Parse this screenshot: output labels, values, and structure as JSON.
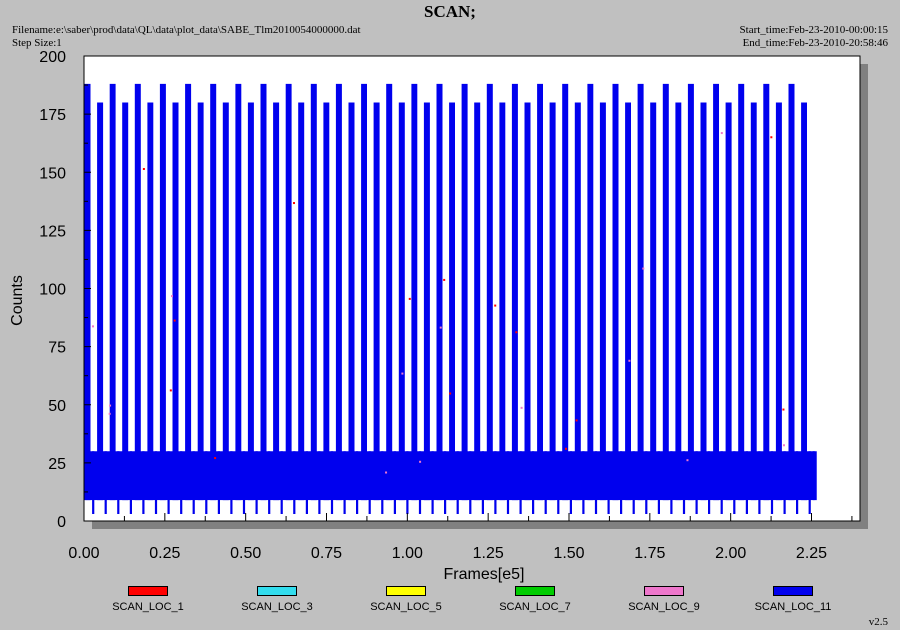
{
  "header": {
    "title": "SCAN;",
    "filename": "Filename:e:\\saber\\prod\\data\\QL\\data\\plot_data\\SABE_Tlm2010054000000.dat",
    "step_size": "Step Size:1",
    "start_time": "Start_time:Feb-23-2010-00:00:15",
    "end_time": "End_time:Feb-23-2010-20:58:46"
  },
  "version": "v2.5",
  "colors": {
    "background": "#c0c0c0",
    "plot_area": "#ffffff",
    "shadow": "#808080"
  },
  "chart_data": {
    "type": "line",
    "title": "SCAN;",
    "xlabel": "Frames[e5]",
    "ylabel": "Counts",
    "xlim": [
      0,
      2.4
    ],
    "ylim": [
      0,
      200
    ],
    "xticks": [
      "0.00",
      "0.25",
      "0.50",
      "0.75",
      "1.00",
      "1.25",
      "1.50",
      "1.75",
      "2.00",
      "2.25"
    ],
    "yticks": [
      "0",
      "25",
      "50",
      "75",
      "100",
      "125",
      "150",
      "175",
      "200"
    ],
    "grid": false,
    "legend_position": "bottom",
    "series": [
      {
        "name": "SCAN_LOC_1",
        "color": "#ff0000",
        "pattern": "sparse-dots"
      },
      {
        "name": "SCAN_LOC_3",
        "color": "#33ddee",
        "pattern": "none"
      },
      {
        "name": "SCAN_LOC_5",
        "color": "#ffff00",
        "pattern": "none"
      },
      {
        "name": "SCAN_LOC_7",
        "color": "#00cc00",
        "pattern": "none"
      },
      {
        "name": "SCAN_LOC_9",
        "color": "#ee77cc",
        "pattern": "sparse-dots"
      },
      {
        "name": "SCAN_LOC_11",
        "color": "#0000ee",
        "pattern": "scan-cycles",
        "x_range": [
          0.005,
          2.26
        ],
        "peak_high": 188,
        "peak_low": 180,
        "baseline_band": [
          9,
          30
        ],
        "floor": 3,
        "cycles": 58
      }
    ]
  }
}
